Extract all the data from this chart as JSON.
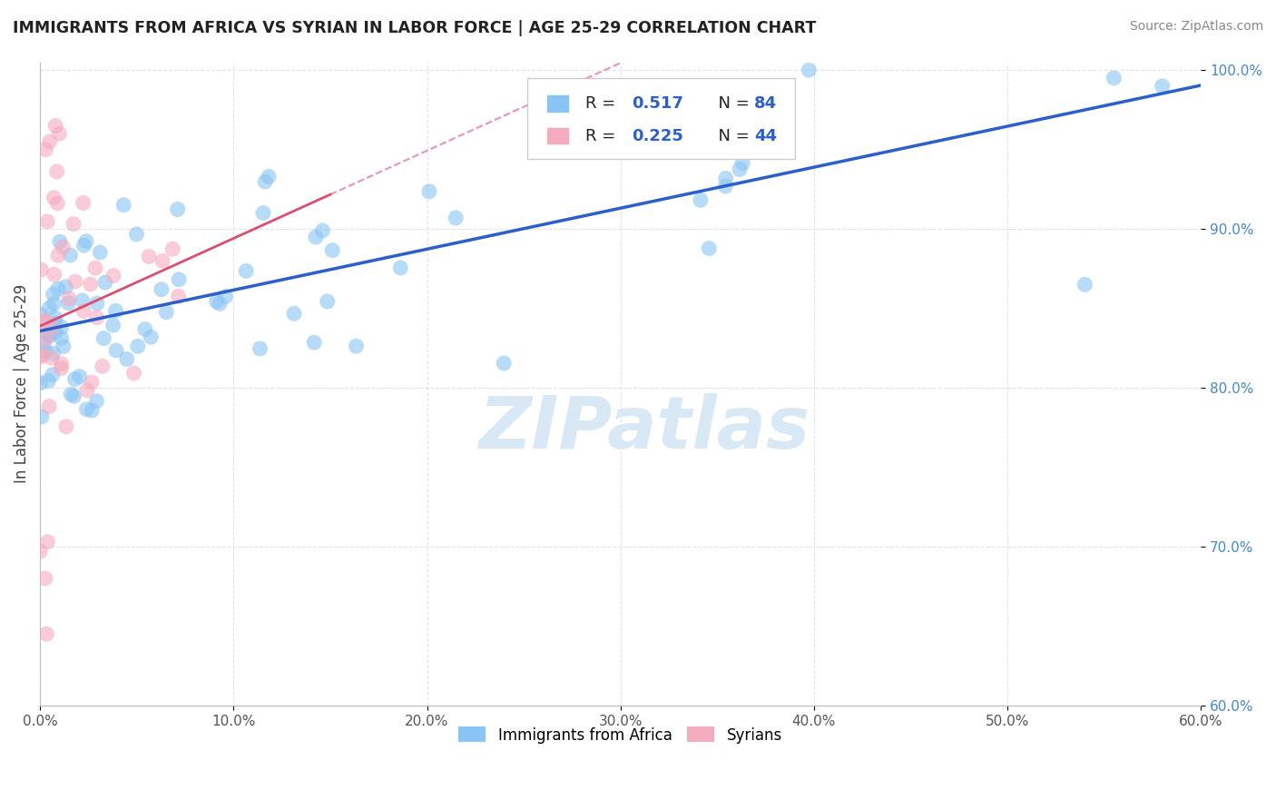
{
  "title": "IMMIGRANTS FROM AFRICA VS SYRIAN IN LABOR FORCE | AGE 25-29 CORRELATION CHART",
  "source": "Source: ZipAtlas.com",
  "ylabel": "In Labor Force | Age 25-29",
  "xlim": [
    0.0,
    0.6
  ],
  "ylim": [
    0.6,
    1.005
  ],
  "xticks": [
    0.0,
    0.1,
    0.2,
    0.3,
    0.4,
    0.5,
    0.6
  ],
  "yticks": [
    0.6,
    0.7,
    0.8,
    0.9,
    1.0
  ],
  "xtick_labels": [
    "0.0%",
    "10.0%",
    "20.0%",
    "30.0%",
    "40.0%",
    "50.0%",
    "60.0%"
  ],
  "ytick_labels": [
    "60.0%",
    "70.0%",
    "80.0%",
    "90.0%",
    "100.0%"
  ],
  "legend_label_africa": "Immigrants from Africa",
  "legend_label_syrian": "Syrians",
  "R_africa": 0.517,
  "N_africa": 84,
  "R_syrian": 0.225,
  "N_syrian": 44,
  "africa_color": "#89C4F4",
  "africa_color_edge": "#89C4F4",
  "syrian_color": "#F4ABBE",
  "syrian_color_edge": "#F4ABBE",
  "africa_line_color": "#2B5FCC",
  "syrian_line_color": "#D94F70",
  "grid_color": "#DDDDDD",
  "watermark_text": "ZIPatlas",
  "watermark_color": "#D8E8F5",
  "title_color": "#222222",
  "source_color": "#888888",
  "ylabel_color": "#444444",
  "tick_color_x": "#555555",
  "tick_color_y": "#4488CC",
  "background": "#FFFFFF"
}
